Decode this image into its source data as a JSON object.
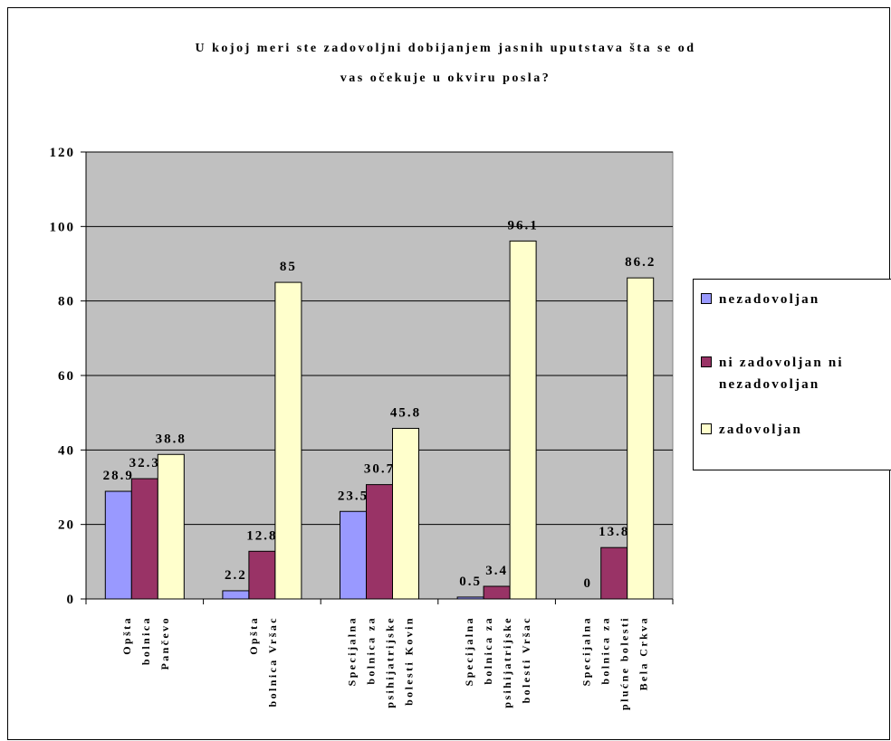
{
  "chart_data": {
    "type": "bar",
    "title_line1": "U kojoj meri ste zadovoljni dobijanjem jasnih uputstava šta se od",
    "title_line2": "vas očekuje u okviru posla?",
    "xlabel": "",
    "ylabel": "",
    "ylim": [
      0,
      120
    ],
    "yticks": [
      "0",
      "20",
      "40",
      "60",
      "80",
      "100",
      "120"
    ],
    "grid": true,
    "legend_position": "right",
    "categories": [
      [
        "Opšta",
        "bolnica",
        "Pančevo"
      ],
      [
        "Opšta",
        "bolnica Vršac"
      ],
      [
        "Specijalna",
        "bolnica za",
        "psihijatrijske",
        "bolesti Kovin"
      ],
      [
        "Specijalna",
        "bolnica za",
        "psihijatrijske",
        "bolesti Vršac"
      ],
      [
        "Specijalna",
        "bolnica za",
        "plućne bolesti",
        "Bela Crkva"
      ]
    ],
    "series": [
      {
        "name": "nezadovoljan",
        "color": "#9999ff",
        "values": [
          28.9,
          2.2,
          23.5,
          0.5,
          0
        ],
        "labels": [
          "28.9",
          "2.2",
          "23.5",
          "0.5",
          "0"
        ]
      },
      {
        "name": "ni zadovoljan ni nezadovoljan",
        "color": "#993366",
        "values": [
          32.3,
          12.8,
          30.7,
          3.4,
          13.8
        ],
        "labels": [
          "32.3",
          "12.8",
          "30.7",
          "3.4",
          "13.8"
        ]
      },
      {
        "name": "zadovoljan",
        "color": "#ffffcc",
        "values": [
          38.8,
          85,
          45.8,
          96.1,
          86.2
        ],
        "labels": [
          "38.8",
          "85",
          "45.8",
          "96.1",
          "86.2"
        ]
      }
    ],
    "plot_background": "#c0c0c0"
  }
}
